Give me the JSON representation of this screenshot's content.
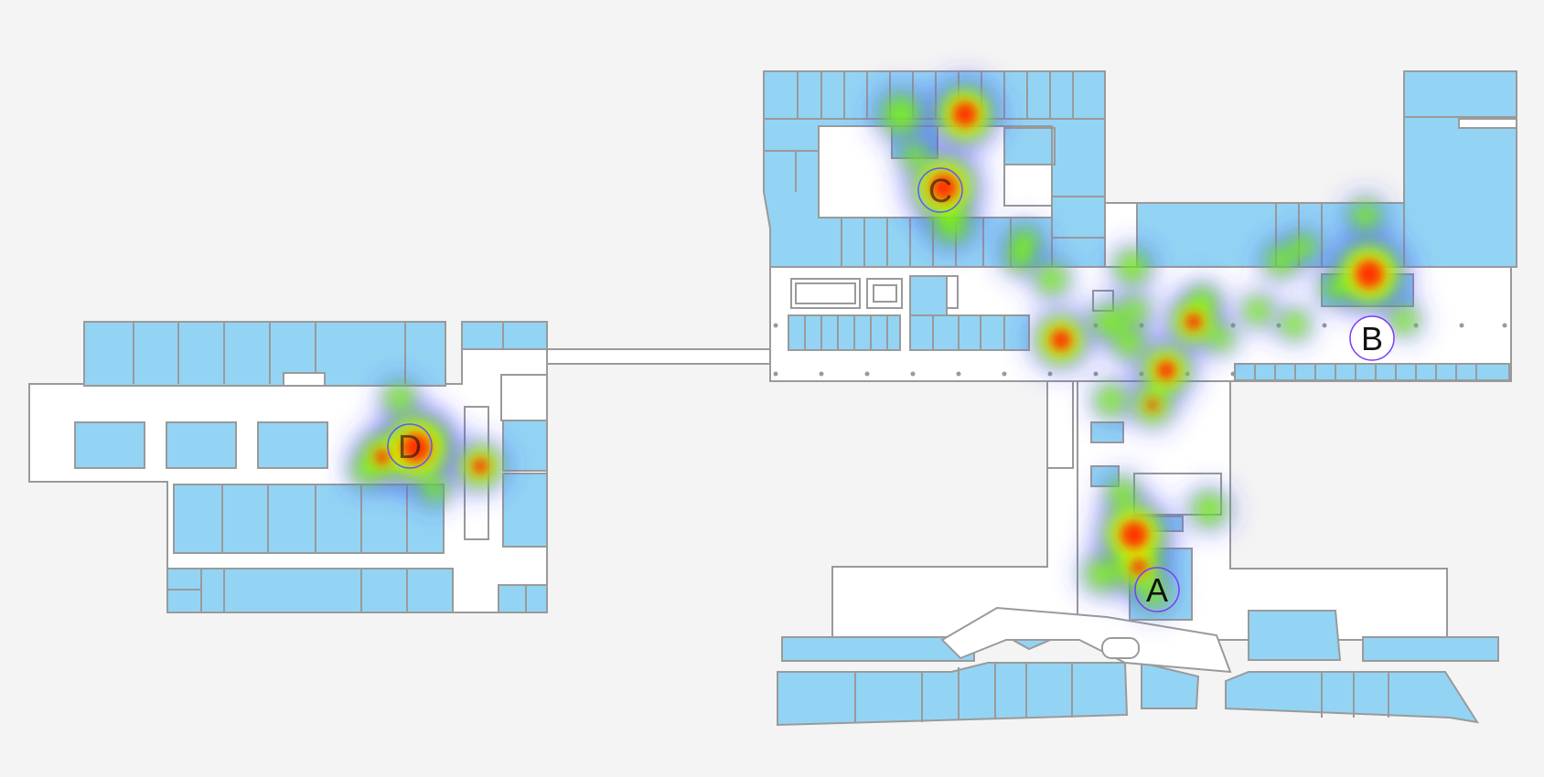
{
  "map": {
    "colors": {
      "background": "#f4f4f4",
      "corridor": "#ffffff",
      "store": "#93d4f4",
      "wall": "#9a9a9a",
      "heat_gradient": [
        "#3a3aff",
        "#00e5ff",
        "#7dff00",
        "#ffff00",
        "#ff8a00",
        "#ff1a00"
      ]
    },
    "markers": [
      {
        "id": "A",
        "label": "A"
      },
      {
        "id": "B",
        "label": "B"
      },
      {
        "id": "C",
        "label": "C"
      },
      {
        "id": "D",
        "label": "D"
      }
    ]
  }
}
